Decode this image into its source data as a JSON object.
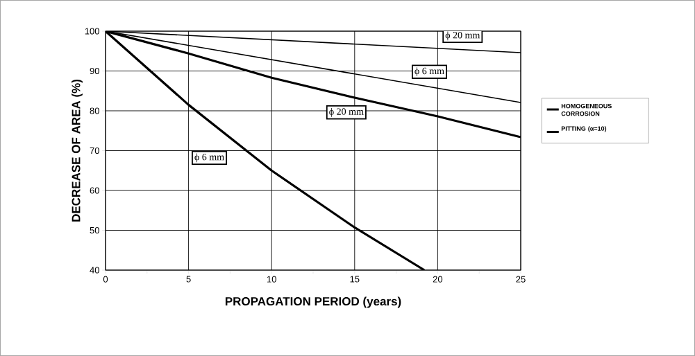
{
  "chart_data": {
    "type": "line",
    "xlabel": "PROPAGATION  PERIOD (years)",
    "ylabel": "DECREASE OF AREA (%)",
    "xlim": [
      0,
      25
    ],
    "ylim": [
      40,
      100
    ],
    "xticks": [
      0,
      {
        "value": 2.5,
        "label": null
      },
      5,
      {
        "value": 7.5,
        "label": null
      },
      10,
      {
        "value": 12.5,
        "label": null
      },
      15,
      {
        "value": 17.5,
        "label": null
      },
      20,
      {
        "value": 22.5,
        "label": null
      },
      25
    ],
    "yticks": [
      40,
      50,
      60,
      70,
      80,
      90,
      100
    ],
    "grid": true,
    "legend": "right",
    "marker": "none",
    "line_style": "solid",
    "series": [
      {
        "name": "HOMOGENEOUS CORROSION",
        "color": "#000000",
        "x": [
          0,
          25
        ],
        "values": [
          100,
          94.6
        ]
      },
      {
        "color": "#000000",
        "x": [
          0,
          25
        ],
        "values": [
          100,
          82.1
        ]
      },
      {
        "name": "PITTING (α=10)",
        "color": "#000000",
        "x": [
          0,
          5,
          10,
          15,
          20,
          25
        ],
        "values": [
          100,
          94.4,
          88.3,
          83.3,
          78.6,
          73.4
        ]
      },
      {
        "color": "#000000",
        "x": [
          0,
          5,
          10,
          15,
          19.2
        ],
        "values": [
          100,
          81.5,
          65,
          50.7,
          40
        ]
      }
    ],
    "annotations": [
      "ϕ 20 mm",
      "ϕ  6 mm",
      "ϕ 20 mm",
      "ϕ  6 mm"
    ]
  }
}
